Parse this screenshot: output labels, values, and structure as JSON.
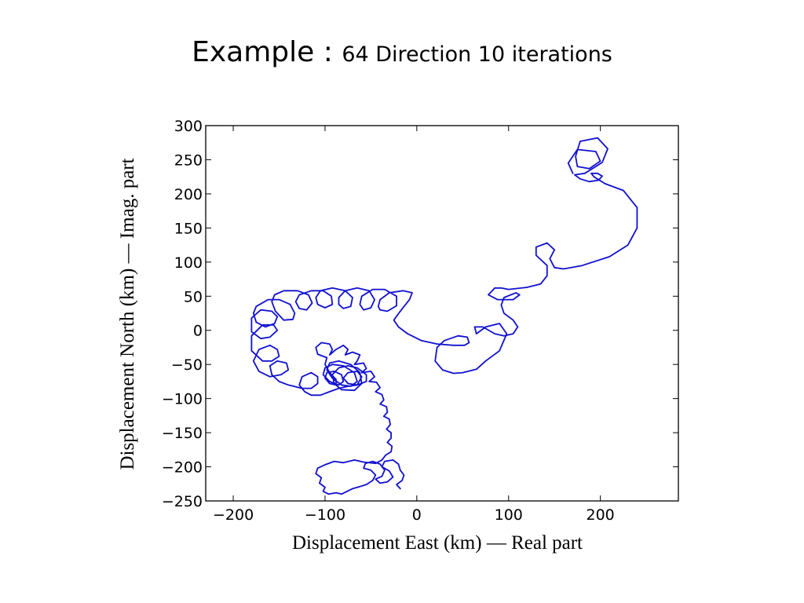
{
  "slide": {
    "title_main": "Example : ",
    "title_sub": "64 Direction 10 iterations"
  },
  "chart_data": {
    "type": "line",
    "title": "",
    "xlabel": "Displacement East (km) — Real part",
    "ylabel": "Displacement North (km) — Imag. part",
    "xlim": [
      -230,
      285
    ],
    "ylim": [
      -250,
      300
    ],
    "xticks": [
      -200,
      -100,
      0,
      100,
      200
    ],
    "yticks": [
      -250,
      -200,
      -150,
      -100,
      -50,
      0,
      50,
      100,
      150,
      200,
      250,
      300
    ],
    "grid": false,
    "legend": "none",
    "line_color": "#1010d0",
    "series": [
      {
        "path": [
          [
            170,
            230
          ],
          [
            165,
            245
          ],
          [
            175,
            265
          ],
          [
            195,
            262
          ],
          [
            200,
            248
          ],
          [
            188,
            237
          ],
          [
            175,
            240
          ],
          [
            173,
            255
          ],
          [
            178,
            277
          ],
          [
            197,
            282
          ],
          [
            208,
            266
          ],
          [
            202,
            246
          ],
          [
            183,
            230
          ],
          [
            172,
            228
          ],
          [
            178,
            222
          ],
          [
            188,
            218
          ],
          [
            198,
            220
          ],
          [
            202,
            226
          ],
          [
            197,
            230
          ],
          [
            190,
            230
          ],
          [
            193,
            225
          ],
          [
            205,
            215
          ],
          [
            225,
            205
          ],
          [
            240,
            180
          ],
          [
            240,
            150
          ],
          [
            230,
            125
          ],
          [
            210,
            108
          ],
          [
            180,
            95
          ],
          [
            160,
            90
          ],
          [
            150,
            92
          ],
          [
            145,
            105
          ],
          [
            150,
            118
          ],
          [
            142,
            128
          ],
          [
            130,
            122
          ],
          [
            130,
            110
          ],
          [
            142,
            95
          ],
          [
            142,
            80
          ],
          [
            135,
            68
          ],
          [
            120,
            63
          ],
          [
            100,
            60
          ],
          [
            92,
            62
          ],
          [
            85,
            62
          ],
          [
            78,
            52
          ],
          [
            88,
            45
          ],
          [
            105,
            45
          ],
          [
            112,
            52
          ],
          [
            108,
            55
          ],
          [
            95,
            48
          ],
          [
            92,
            37
          ],
          [
            95,
            25
          ],
          [
            105,
            15
          ],
          [
            110,
            5
          ],
          [
            105,
            -5
          ],
          [
            95,
            -8
          ],
          [
            85,
            -5
          ],
          [
            72,
            5
          ],
          [
            63,
            5
          ],
          [
            65,
            -5
          ],
          [
            75,
            5
          ],
          [
            90,
            10
          ],
          [
            98,
            -5
          ],
          [
            90,
            -30
          ],
          [
            75,
            -45
          ],
          [
            65,
            -57
          ],
          [
            50,
            -62
          ],
          [
            40,
            -63
          ],
          [
            28,
            -58
          ],
          [
            20,
            -45
          ],
          [
            22,
            -25
          ],
          [
            30,
            -15
          ],
          [
            45,
            -8
          ],
          [
            55,
            -10
          ],
          [
            57,
            -18
          ],
          [
            52,
            -22
          ],
          [
            40,
            -22
          ],
          [
            22,
            -20
          ],
          [
            5,
            -15
          ],
          [
            -10,
            -5
          ],
          [
            -20,
            5
          ],
          [
            -25,
            15
          ],
          [
            -18,
            28
          ],
          [
            -8,
            45
          ],
          [
            -5,
            55
          ],
          [
            -15,
            58
          ],
          [
            -30,
            55
          ],
          [
            -40,
            45
          ],
          [
            -42,
            35
          ],
          [
            -40,
            30
          ],
          [
            -32,
            28
          ],
          [
            -22,
            36
          ],
          [
            -22,
            50
          ],
          [
            -35,
            60
          ],
          [
            -48,
            60
          ],
          [
            -60,
            50
          ],
          [
            -62,
            38
          ],
          [
            -58,
            30
          ],
          [
            -50,
            33
          ],
          [
            -46,
            45
          ],
          [
            -52,
            58
          ],
          [
            -65,
            62
          ],
          [
            -78,
            58
          ],
          [
            -85,
            48
          ],
          [
            -85,
            38
          ],
          [
            -80,
            32
          ],
          [
            -72,
            35
          ],
          [
            -70,
            48
          ],
          [
            -78,
            58
          ],
          [
            -92,
            62
          ],
          [
            -105,
            58
          ],
          [
            -110,
            48
          ],
          [
            -108,
            38
          ],
          [
            -100,
            33
          ],
          [
            -92,
            38
          ],
          [
            -93,
            50
          ],
          [
            -102,
            58
          ],
          [
            -115,
            58
          ],
          [
            -128,
            52
          ],
          [
            -132,
            42
          ],
          [
            -128,
            32
          ],
          [
            -120,
            30
          ],
          [
            -114,
            40
          ],
          [
            -118,
            52
          ],
          [
            -130,
            58
          ],
          [
            -145,
            58
          ],
          [
            -155,
            52
          ],
          [
            -158,
            42
          ],
          [
            -154,
            28
          ],
          [
            -145,
            15
          ],
          [
            -135,
            16
          ],
          [
            -133,
            25
          ],
          [
            -138,
            38
          ],
          [
            -150,
            45
          ],
          [
            -162,
            45
          ],
          [
            -175,
            35
          ],
          [
            -178,
            25
          ],
          [
            -175,
            12
          ],
          [
            -165,
            5
          ],
          [
            -155,
            10
          ],
          [
            -152,
            20
          ],
          [
            -158,
            28
          ],
          [
            -170,
            30
          ],
          [
            -180,
            18
          ],
          [
            -180,
            -2
          ],
          [
            -170,
            -12
          ],
          [
            -160,
            -10
          ],
          [
            -152,
            0
          ],
          [
            -156,
            8
          ],
          [
            -168,
            8
          ],
          [
            -180,
            -8
          ],
          [
            -180,
            -30
          ],
          [
            -168,
            -45
          ],
          [
            -158,
            -45
          ],
          [
            -150,
            -38
          ],
          [
            -152,
            -28
          ],
          [
            -160,
            -22
          ],
          [
            -172,
            -28
          ],
          [
            -178,
            -45
          ],
          [
            -172,
            -60
          ],
          [
            -160,
            -68
          ],
          [
            -148,
            -65
          ],
          [
            -140,
            -58
          ],
          [
            -142,
            -48
          ],
          [
            -152,
            -45
          ],
          [
            -160,
            -52
          ],
          [
            -158,
            -65
          ],
          [
            -150,
            -75
          ],
          [
            -140,
            -80
          ],
          [
            -125,
            -85
          ],
          [
            -115,
            -85
          ],
          [
            -108,
            -78
          ],
          [
            -108,
            -68
          ],
          [
            -115,
            -62
          ],
          [
            -125,
            -68
          ],
          [
            -128,
            -80
          ],
          [
            -122,
            -90
          ],
          [
            -115,
            -95
          ],
          [
            -105,
            -95
          ],
          [
            -95,
            -90
          ],
          [
            -85,
            -85
          ],
          [
            -75,
            -82
          ],
          [
            -65,
            -80
          ],
          [
            -60,
            -68
          ],
          [
            -65,
            -60
          ],
          [
            -75,
            -62
          ],
          [
            -80,
            -70
          ],
          [
            -75,
            -78
          ],
          [
            -65,
            -80
          ],
          [
            -55,
            -75
          ],
          [
            -55,
            -65
          ],
          [
            -65,
            -55
          ],
          [
            -75,
            -52
          ],
          [
            -85,
            -55
          ],
          [
            -92,
            -65
          ],
          [
            -90,
            -78
          ],
          [
            -82,
            -87
          ],
          [
            -68,
            -88
          ],
          [
            -60,
            -78
          ],
          [
            -62,
            -62
          ],
          [
            -72,
            -50
          ],
          [
            -85,
            -45
          ],
          [
            -95,
            -48
          ],
          [
            -98,
            -58
          ],
          [
            -92,
            -70
          ],
          [
            -82,
            -80
          ],
          [
            -72,
            -82
          ],
          [
            -65,
            -75
          ],
          [
            -68,
            -62
          ],
          [
            -80,
            -52
          ],
          [
            -92,
            -50
          ],
          [
            -100,
            -55
          ],
          [
            -102,
            -65
          ],
          [
            -95,
            -75
          ],
          [
            -85,
            -80
          ],
          [
            -80,
            -75
          ],
          [
            -82,
            -65
          ],
          [
            -90,
            -60
          ],
          [
            -98,
            -62
          ],
          [
            -100,
            -70
          ],
          [
            -95,
            -78
          ],
          [
            -88,
            -80
          ],
          [
            -88,
            -72
          ],
          [
            -95,
            -62
          ],
          [
            -100,
            -50
          ],
          [
            -98,
            -40
          ],
          [
            -108,
            -35
          ],
          [
            -110,
            -25
          ],
          [
            -104,
            -18
          ],
          [
            -95,
            -20
          ],
          [
            -92,
            -28
          ],
          [
            -95,
            -36
          ],
          [
            -88,
            -28
          ],
          [
            -80,
            -22
          ],
          [
            -75,
            -28
          ],
          [
            -78,
            -36
          ],
          [
            -70,
            -32
          ],
          [
            -62,
            -36
          ],
          [
            -65,
            -45
          ],
          [
            -68,
            -50
          ],
          [
            -58,
            -48
          ],
          [
            -55,
            -56
          ],
          [
            -60,
            -62
          ],
          [
            -50,
            -60
          ],
          [
            -46,
            -68
          ],
          [
            -52,
            -75
          ],
          [
            -44,
            -76
          ],
          [
            -40,
            -84
          ],
          [
            -45,
            -90
          ],
          [
            -38,
            -94
          ],
          [
            -36,
            -102
          ],
          [
            -40,
            -108
          ],
          [
            -33,
            -112
          ],
          [
            -32,
            -120
          ],
          [
            -36,
            -126
          ],
          [
            -30,
            -130
          ],
          [
            -29,
            -138
          ],
          [
            -33,
            -145
          ],
          [
            -28,
            -150
          ],
          [
            -28,
            -158
          ],
          [
            -32,
            -164
          ],
          [
            -27,
            -170
          ],
          [
            -28,
            -178
          ],
          [
            -34,
            -183
          ],
          [
            -38,
            -190
          ],
          [
            -45,
            -195
          ],
          [
            -58,
            -193
          ],
          [
            -68,
            -190
          ],
          [
            -80,
            -194
          ],
          [
            -90,
            -192
          ],
          [
            -100,
            -197
          ],
          [
            -108,
            -202
          ],
          [
            -110,
            -210
          ],
          [
            -104,
            -216
          ],
          [
            -106,
            -224
          ],
          [
            -100,
            -230
          ],
          [
            -102,
            -236
          ],
          [
            -96,
            -240
          ],
          [
            -88,
            -238
          ],
          [
            -82,
            -240
          ],
          [
            -76,
            -236
          ],
          [
            -70,
            -232
          ],
          [
            -62,
            -229
          ],
          [
            -55,
            -226
          ],
          [
            -48,
            -220
          ],
          [
            -45,
            -212
          ],
          [
            -50,
            -205
          ],
          [
            -58,
            -202
          ],
          [
            -56,
            -195
          ],
          [
            -48,
            -192
          ],
          [
            -40,
            -196
          ],
          [
            -35,
            -205
          ],
          [
            -38,
            -214
          ],
          [
            -45,
            -218
          ],
          [
            -40,
            -224
          ],
          [
            -32,
            -222
          ],
          [
            -26,
            -215
          ],
          [
            -30,
            -206
          ],
          [
            -38,
            -200
          ],
          [
            -35,
            -192
          ],
          [
            -26,
            -190
          ],
          [
            -20,
            -196
          ],
          [
            -18,
            -205
          ],
          [
            -14,
            -212
          ],
          [
            -16,
            -220
          ],
          [
            -22,
            -226
          ],
          [
            -18,
            -232
          ]
        ]
      }
    ]
  }
}
